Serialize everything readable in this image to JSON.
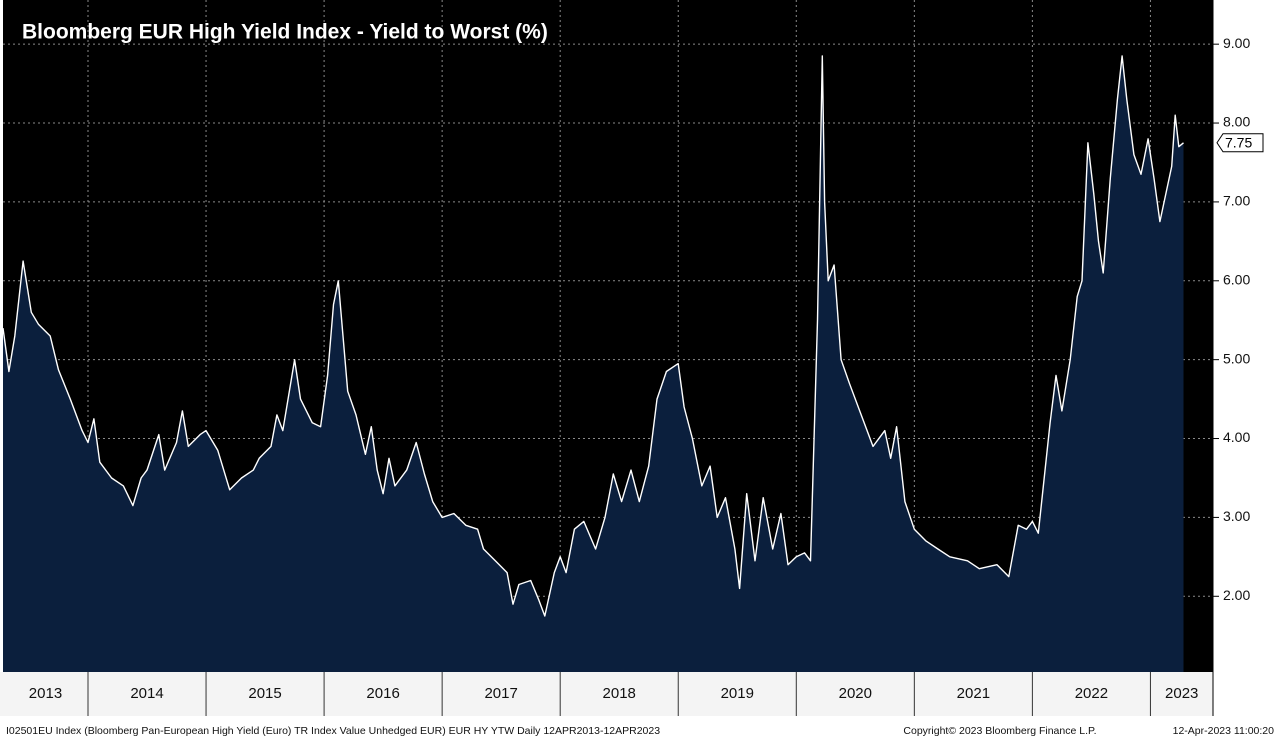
{
  "chart_data": {
    "type": "area",
    "title": "Bloomberg EUR High Yield Index - Yield to Worst (%)",
    "footer_left": "I02501EU Index (Bloomberg Pan-European High Yield (Euro) TR Index Value Unhedged EUR) EUR HY YTW  Daily 12APR2013-12APR2023",
    "footer_center": "Copyright© 2023 Bloomberg Finance L.P.",
    "footer_right": "12-Apr-2023 11:00:20",
    "color": "#ffffff",
    "fill": "#0b1f3d",
    "grid": true,
    "xlim": [
      2013.28,
      2023.53
    ],
    "xticks": [
      2014,
      2015,
      2016,
      2017,
      2018,
      2019,
      2020,
      2021,
      2022,
      2023
    ],
    "year_labels": [
      "2013",
      "2014",
      "2015",
      "2016",
      "2017",
      "2018",
      "2019",
      "2020",
      "2021",
      "2022",
      "2023"
    ],
    "ylim": [
      1.04,
      9.56
    ],
    "yticks": [
      {
        "value": 2,
        "label": "2.00"
      },
      {
        "value": 3,
        "label": "3.00"
      },
      {
        "value": 4,
        "label": "4.00"
      },
      {
        "value": 5,
        "label": "5.00"
      },
      {
        "value": 6,
        "label": "6.00"
      },
      {
        "value": 7,
        "label": "7.00"
      },
      {
        "value": 8,
        "label": "8.00"
      },
      {
        "value": 9,
        "label": "9.00"
      }
    ],
    "last_value_label": "7.75",
    "x": [
      2013.28,
      2013.33,
      2013.38,
      2013.45,
      2013.52,
      2013.58,
      2013.68,
      2013.75,
      2013.85,
      2013.95,
      2014.0,
      2014.05,
      2014.1,
      2014.2,
      2014.3,
      2014.38,
      2014.45,
      2014.5,
      2014.6,
      2014.65,
      2014.75,
      2014.8,
      2014.85,
      2014.95,
      2015.0,
      2015.1,
      2015.2,
      2015.3,
      2015.4,
      2015.45,
      2015.55,
      2015.6,
      2015.65,
      2015.75,
      2015.8,
      2015.9,
      2015.97,
      2016.03,
      2016.08,
      2016.12,
      2016.16,
      2016.2,
      2016.27,
      2016.35,
      2016.4,
      2016.45,
      2016.5,
      2016.55,
      2016.6,
      2016.7,
      2016.78,
      2016.85,
      2016.92,
      2017.0,
      2017.1,
      2017.2,
      2017.3,
      2017.35,
      2017.45,
      2017.55,
      2017.6,
      2017.65,
      2017.75,
      2017.82,
      2017.87,
      2017.95,
      2018.0,
      2018.05,
      2018.12,
      2018.2,
      2018.3,
      2018.38,
      2018.45,
      2018.52,
      2018.6,
      2018.67,
      2018.75,
      2018.82,
      2018.9,
      2019.0,
      2019.05,
      2019.12,
      2019.2,
      2019.27,
      2019.33,
      2019.4,
      2019.48,
      2019.52,
      2019.58,
      2019.65,
      2019.72,
      2019.8,
      2019.87,
      2019.93,
      2020.0,
      2020.07,
      2020.12,
      2020.18,
      2020.22,
      2020.24,
      2020.27,
      2020.32,
      2020.38,
      2020.45,
      2020.55,
      2020.65,
      2020.75,
      2020.8,
      2020.85,
      2020.92,
      2021.0,
      2021.1,
      2021.2,
      2021.3,
      2021.45,
      2021.55,
      2021.7,
      2021.8,
      2021.88,
      2021.95,
      2022.0,
      2022.05,
      2022.1,
      2022.15,
      2022.2,
      2022.25,
      2022.32,
      2022.38,
      2022.42,
      2022.47,
      2022.52,
      2022.56,
      2022.6,
      2022.66,
      2022.72,
      2022.76,
      2022.8,
      2022.86,
      2022.92,
      2022.98,
      2023.03,
      2023.08,
      2023.13,
      2023.18,
      2023.21,
      2023.24,
      2023.28
    ],
    "values": [
      5.4,
      4.85,
      5.3,
      6.25,
      5.6,
      5.45,
      5.3,
      4.87,
      4.5,
      4.1,
      3.95,
      4.25,
      3.7,
      3.5,
      3.4,
      3.15,
      3.5,
      3.6,
      4.05,
      3.6,
      3.95,
      4.35,
      3.9,
      4.05,
      4.1,
      3.85,
      3.35,
      3.5,
      3.6,
      3.75,
      3.9,
      4.3,
      4.1,
      5.0,
      4.5,
      4.2,
      4.15,
      4.8,
      5.7,
      6.0,
      5.3,
      4.6,
      4.3,
      3.8,
      4.15,
      3.6,
      3.3,
      3.75,
      3.4,
      3.6,
      3.95,
      3.55,
      3.2,
      3.0,
      3.05,
      2.9,
      2.85,
      2.6,
      2.45,
      2.3,
      1.9,
      2.15,
      2.2,
      1.95,
      1.75,
      2.3,
      2.5,
      2.3,
      2.85,
      2.95,
      2.6,
      3.0,
      3.55,
      3.2,
      3.6,
      3.2,
      3.65,
      4.5,
      4.85,
      4.95,
      4.4,
      4.0,
      3.4,
      3.65,
      3.0,
      3.25,
      2.6,
      2.1,
      3.3,
      2.45,
      3.25,
      2.6,
      3.05,
      2.4,
      2.5,
      2.55,
      2.45,
      5.5,
      8.85,
      7.0,
      6.0,
      6.2,
      5.0,
      4.7,
      4.3,
      3.9,
      4.1,
      3.75,
      4.15,
      3.2,
      2.85,
      2.7,
      2.6,
      2.5,
      2.45,
      2.35,
      2.4,
      2.25,
      2.9,
      2.85,
      2.95,
      2.8,
      3.5,
      4.2,
      4.8,
      4.35,
      5.0,
      5.8,
      6.0,
      7.75,
      7.1,
      6.5,
      6.1,
      7.3,
      8.3,
      8.85,
      8.3,
      7.6,
      7.35,
      7.8,
      7.3,
      6.75,
      7.1,
      7.45,
      8.1,
      7.7,
      7.75
    ]
  }
}
